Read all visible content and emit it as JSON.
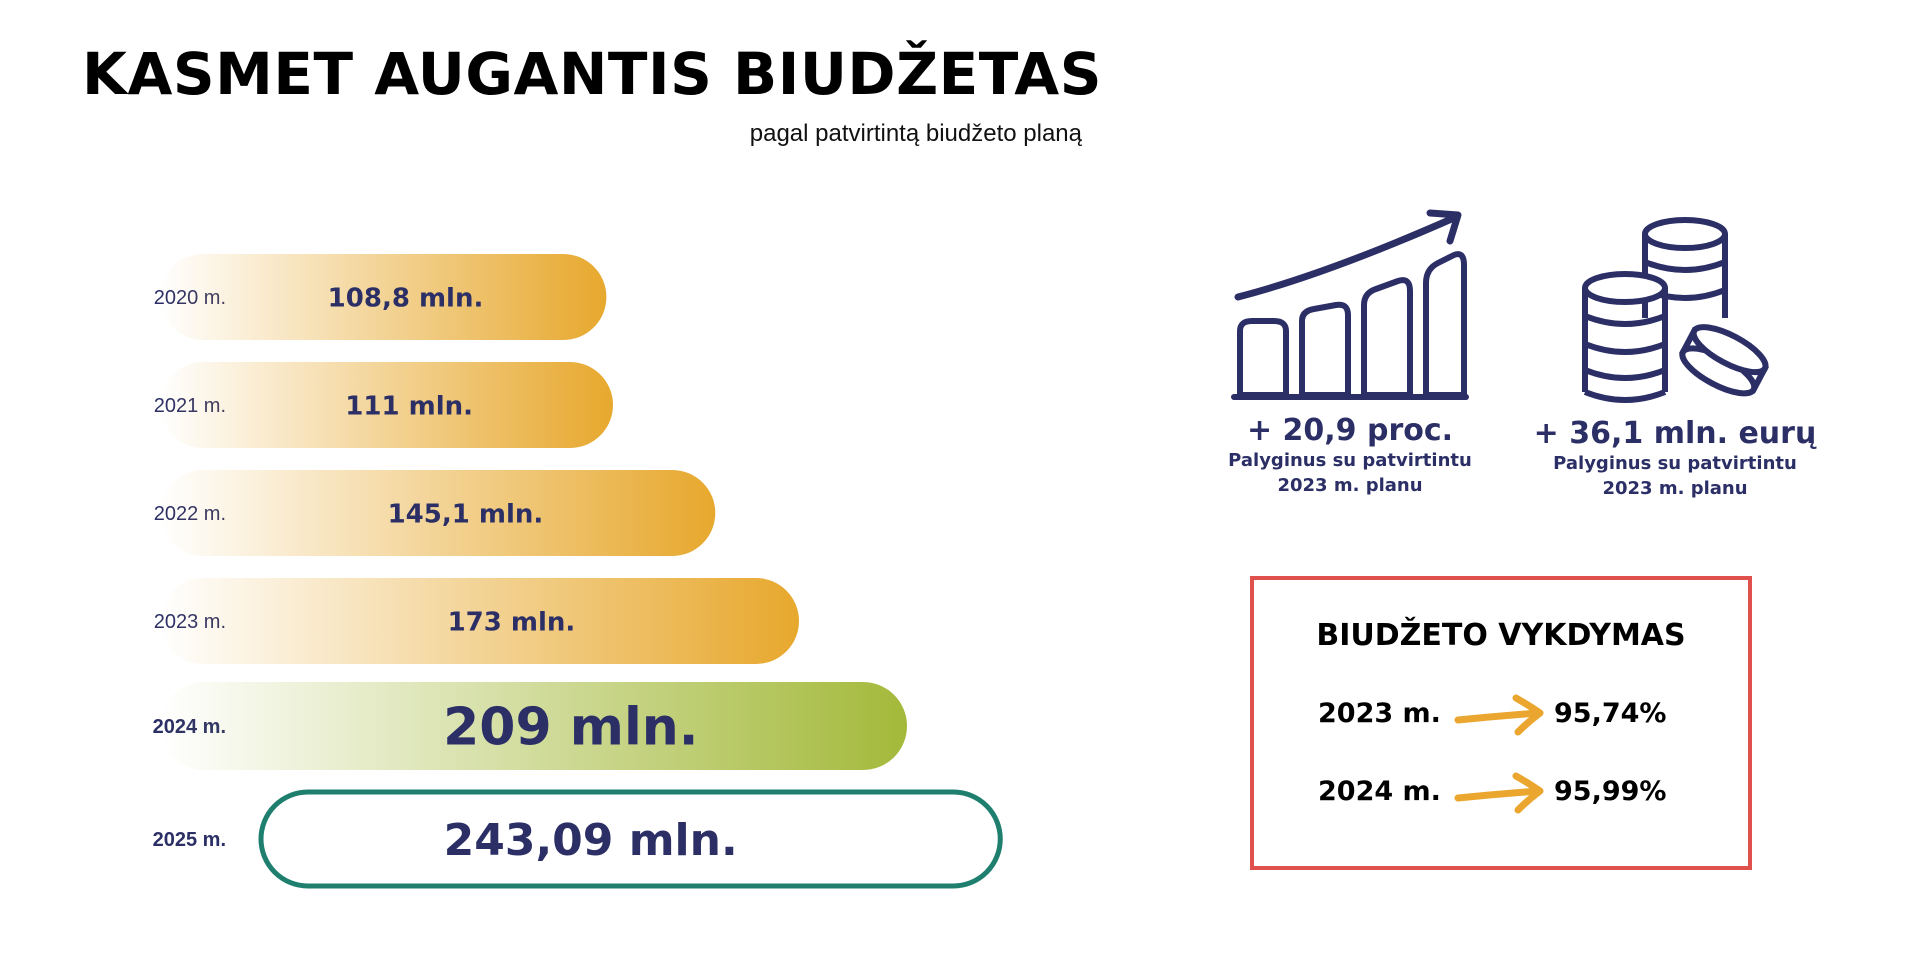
{
  "header": {
    "title": "KASMET AUGANTIS BIUDŽETAS",
    "subtitle": "pagal patvirtintą biudžeto planą"
  },
  "chart_data": {
    "type": "bar",
    "orientation": "horizontal",
    "categories": [
      "2020 m.",
      "2021 m.",
      "2022 m.",
      "2023 m.",
      "2024 m.",
      "2025 m."
    ],
    "values": [
      108.8,
      111,
      145.1,
      173,
      209,
      243.09
    ],
    "data_labels": [
      "108,8 mln.",
      "111 mln.",
      "145,1 mln.",
      "173 mln.",
      "209 mln.",
      "243,09 mln."
    ],
    "title": "",
    "xlabel": "",
    "ylabel": "",
    "grid": false,
    "legend": "none",
    "bar_styles": [
      "gold-gradient",
      "gold-gradient",
      "gold-gradient",
      "gold-gradient",
      "green-gradient",
      "outlined"
    ]
  },
  "stats": [
    {
      "icon": "growth-chart-icon",
      "value": "+ 20,9 proc.",
      "desc_line1": "Palyginus su patvirtintu",
      "desc_line2": "2023 m. planu"
    },
    {
      "icon": "coins-icon",
      "value": "+ 36,1 mln. eurų",
      "desc_line1": "Palyginus su patvirtintu",
      "desc_line2": "2023 m. planu"
    }
  ],
  "execution": {
    "title": "BIUDŽETO VYKDYMAS",
    "rows": [
      {
        "year": "2023 m.",
        "value": "95,74%"
      },
      {
        "year": "2024 m.",
        "value": "95,99%"
      }
    ]
  },
  "colors": {
    "gold": "#e7a82d",
    "green": "#a3b93a",
    "outline_teal": "#1e7f6e",
    "navy": "#2b2f66",
    "execution_border": "#e0504d",
    "arrow": "#eaa62f"
  }
}
